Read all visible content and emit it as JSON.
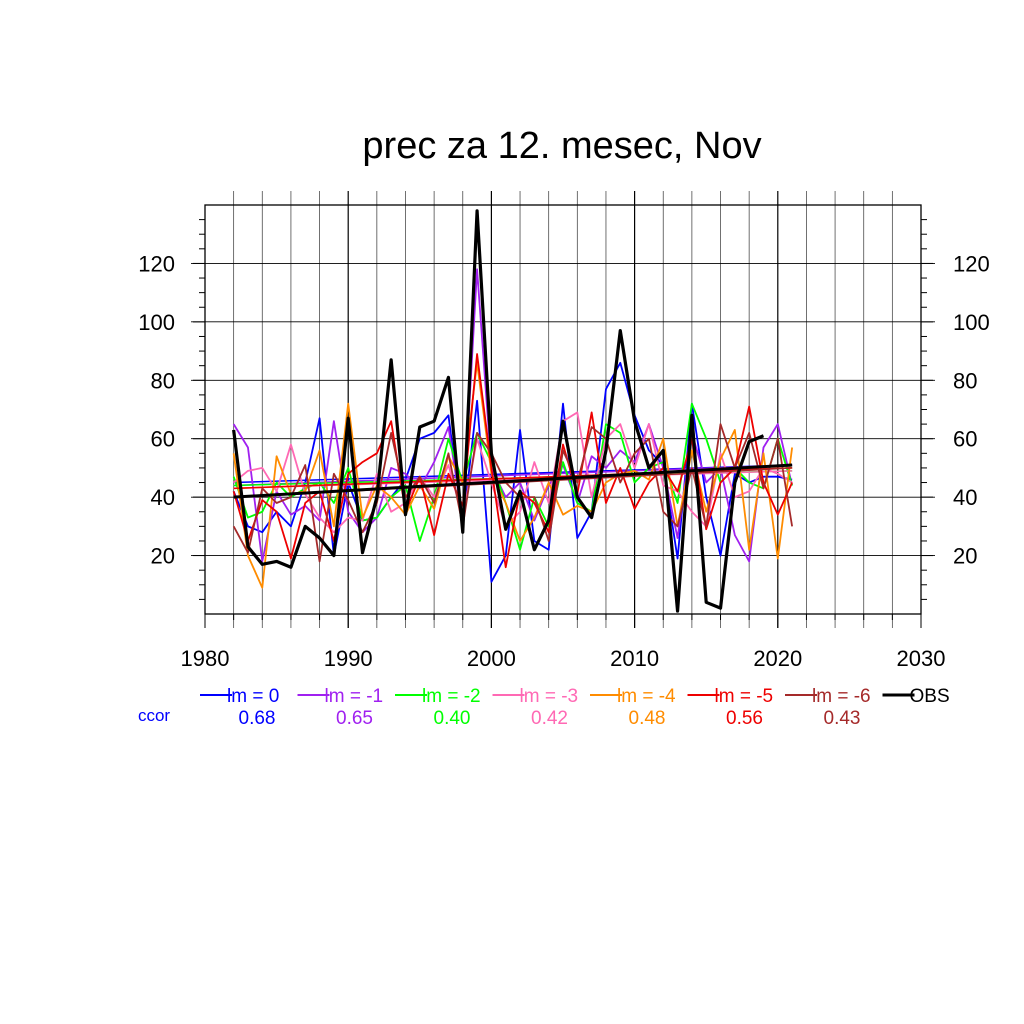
{
  "chart_data": {
    "type": "line",
    "title": "prec za 12. mesec, Nov",
    "xlabel": "",
    "ylabel": "",
    "xlim": [
      1980,
      2030
    ],
    "ylim": [
      0,
      140
    ],
    "x_ticks": [
      1980,
      1990,
      2000,
      2010,
      2020,
      2030
    ],
    "y_ticks": [
      20,
      40,
      60,
      80,
      100,
      120
    ],
    "grid": true,
    "legend_position": "bottom",
    "ccor_label": "ccor",
    "x": [
      1982,
      1983,
      1984,
      1985,
      1986,
      1987,
      1988,
      1989,
      1990,
      1991,
      1992,
      1993,
      1994,
      1995,
      1996,
      1997,
      1998,
      1999,
      2000,
      2001,
      2002,
      2003,
      2004,
      2005,
      2006,
      2007,
      2008,
      2009,
      2010,
      2011,
      2012,
      2013,
      2014,
      2015,
      2016,
      2017,
      2018,
      2019,
      2020,
      2021
    ],
    "series": [
      {
        "name": "lm = 0",
        "color": "#0000ff",
        "ccor": "0.68",
        "trend": [
          45,
          51
        ],
        "values": [
          42,
          30,
          28,
          35,
          30,
          45,
          67,
          20,
          45,
          32,
          33,
          40,
          46,
          60,
          62,
          68,
          30,
          73,
          11,
          20,
          63,
          25,
          22,
          72,
          26,
          35,
          77,
          86,
          68,
          56,
          51,
          19,
          72,
          40,
          20,
          48,
          45,
          47,
          47,
          46
        ]
      },
      {
        "name": "lm = -1",
        "color": "#a020f0",
        "ccor": "0.65",
        "trend": [
          44,
          51
        ],
        "values": [
          65,
          57,
          18,
          42,
          34,
          37,
          32,
          66,
          35,
          28,
          33,
          50,
          48,
          43,
          52,
          64,
          32,
          118,
          50,
          40,
          45,
          32,
          44,
          51,
          38,
          54,
          50,
          56,
          52,
          65,
          50,
          26,
          62,
          45,
          50,
          27,
          18,
          57,
          65,
          44
        ]
      },
      {
        "name": "lm = -2",
        "color": "#00ff00",
        "ccor": "0.40",
        "trend": [
          44,
          49
        ],
        "values": [
          47,
          33,
          35,
          45,
          40,
          43,
          45,
          38,
          50,
          32,
          33,
          40,
          44,
          25,
          40,
          60,
          45,
          62,
          52,
          38,
          22,
          40,
          30,
          52,
          38,
          35,
          65,
          62,
          45,
          50,
          52,
          38,
          72,
          60,
          45,
          50,
          45,
          43,
          60,
          44
        ]
      },
      {
        "name": "lm = -3",
        "color": "#ff69b4",
        "ccor": "0.42",
        "trend": [
          43,
          49
        ],
        "values": [
          45,
          49,
          50,
          42,
          58,
          41,
          33,
          28,
          33,
          32,
          48,
          35,
          38,
          47,
          40,
          51,
          33,
          60,
          45,
          30,
          35,
          52,
          38,
          66,
          69,
          40,
          60,
          65,
          50,
          65,
          44,
          42,
          35,
          30,
          55,
          40,
          42,
          50,
          48,
          45
        ]
      },
      {
        "name": "lm = -4",
        "color": "#ff8c00",
        "ccor": "0.48",
        "trend": [
          43,
          50
        ],
        "values": [
          55,
          20,
          9,
          54,
          41,
          42,
          56,
          30,
          72,
          33,
          44,
          40,
          34,
          44,
          36,
          54,
          45,
          86,
          48,
          38,
          25,
          33,
          45,
          34,
          37,
          35,
          45,
          48,
          49,
          46,
          60,
          30,
          56,
          35,
          53,
          63,
          22,
          55,
          19,
          57
        ]
      },
      {
        "name": "lm = -5",
        "color": "#ee0000",
        "ccor": "0.56",
        "trend": [
          43,
          50
        ],
        "values": [
          42,
          25,
          39,
          35,
          19,
          38,
          42,
          25,
          48,
          52,
          55,
          66,
          35,
          47,
          27,
          48,
          37,
          89,
          50,
          16,
          42,
          38,
          28,
          58,
          41,
          69,
          38,
          50,
          36,
          45,
          50,
          42,
          60,
          29,
          45,
          50,
          71,
          45,
          34,
          45
        ]
      },
      {
        "name": "lm = -6",
        "color": "#a52a2a",
        "ccor": "0.43",
        "trend": [
          40,
          50
        ],
        "values": [
          30,
          21,
          43,
          38,
          40,
          51,
          18,
          48,
          39,
          28,
          38,
          62,
          40,
          47,
          38,
          55,
          30,
          62,
          55,
          45,
          40,
          40,
          25,
          56,
          45,
          64,
          60,
          45,
          55,
          60,
          35,
          30,
          50,
          30,
          65,
          50,
          62,
          43,
          60,
          30
        ]
      },
      {
        "name": "OBS",
        "color": "#000000",
        "ccor": "",
        "trend": [
          40,
          51
        ],
        "values": [
          63,
          23,
          17,
          18,
          16,
          30,
          26,
          20,
          67,
          21,
          40,
          87,
          34,
          64,
          66,
          81,
          28,
          138,
          55,
          29,
          42,
          22,
          32,
          66,
          40,
          33,
          56,
          97,
          66,
          50,
          56,
          1,
          68,
          4,
          2,
          45,
          59,
          61,
          null,
          null
        ]
      }
    ]
  }
}
